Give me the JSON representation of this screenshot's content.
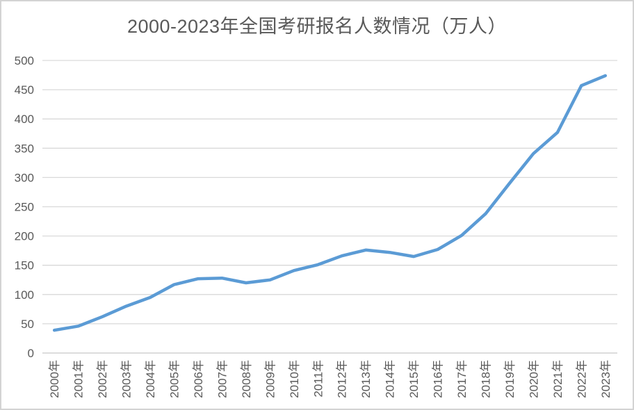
{
  "chart_data": {
    "type": "line",
    "title": "2000-2023年全国考研报名人数情况（万人）",
    "categories": [
      "2000年",
      "2001年",
      "2002年",
      "2003年",
      "2004年",
      "2005年",
      "2006年",
      "2007年",
      "2008年",
      "2009年",
      "2010年",
      "2011年",
      "2012年",
      "2013年",
      "2014年",
      "2015年",
      "2016年",
      "2017年",
      "2018年",
      "2019年",
      "2020年",
      "2021年",
      "2022年",
      "2023年"
    ],
    "values": [
      39,
      46,
      62,
      80,
      95,
      117,
      127,
      128,
      120,
      125,
      141,
      151,
      166,
      176,
      172,
      165,
      177,
      201,
      238,
      290,
      341,
      377,
      457,
      474
    ],
    "xlabel": "",
    "ylabel": "",
    "ylim": [
      0,
      500
    ],
    "yticks": [
      0,
      50,
      100,
      150,
      200,
      250,
      300,
      350,
      400,
      450,
      500
    ],
    "grid": true,
    "legend": "none",
    "colors": {
      "line": "#5B9BD5",
      "gridline": "#D9D9D9",
      "axis_line": "#C8C8C8",
      "text": "#595959",
      "border": "#D3D3D3",
      "background": "#FFFFFF"
    }
  }
}
